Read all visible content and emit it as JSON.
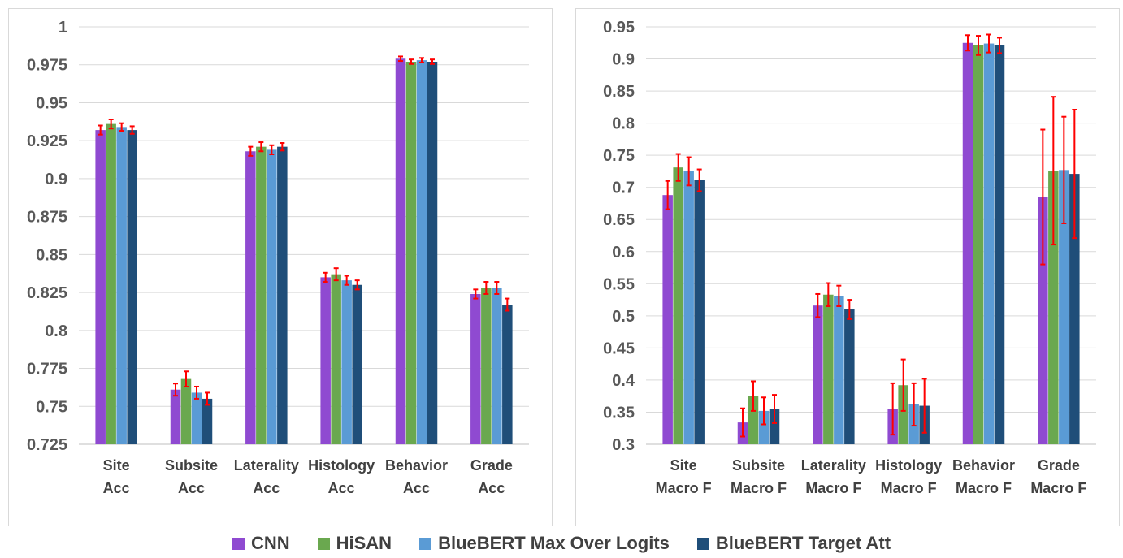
{
  "colors": {
    "series": [
      "#8f4ad1",
      "#6aa84f",
      "#5a9bd5",
      "#1f4e79"
    ],
    "error_bar": "#ff0000",
    "grid": "#d9d9d9"
  },
  "legend": {
    "items": [
      "CNN",
      "HiSAN",
      "BlueBERT Max Over Logits",
      "BlueBERT Target Att"
    ],
    "position": "bottom"
  },
  "chart_data": [
    {
      "type": "bar",
      "grid": true,
      "ylim": [
        0.725,
        1
      ],
      "yticks": [
        "0.725",
        "0.75",
        "0.775",
        "0.8",
        "0.825",
        "0.85",
        "0.875",
        "0.9",
        "0.925",
        "0.95",
        "0.975",
        "1"
      ],
      "categories": [
        [
          "Site",
          "Acc"
        ],
        [
          "Subsite",
          "Acc"
        ],
        [
          "Laterality",
          "Acc"
        ],
        [
          "Histology",
          "Acc"
        ],
        [
          "Behavior",
          "Acc"
        ],
        [
          "Grade",
          "Acc"
        ]
      ],
      "series": [
        {
          "name": "CNN",
          "values": [
            0.932,
            0.761,
            0.918,
            0.835,
            0.979,
            0.824
          ],
          "errors": [
            0.003,
            0.004,
            0.003,
            0.003,
            0.0015,
            0.003
          ]
        },
        {
          "name": "HiSAN",
          "values": [
            0.936,
            0.768,
            0.921,
            0.837,
            0.977,
            0.828
          ],
          "errors": [
            0.003,
            0.005,
            0.003,
            0.004,
            0.0015,
            0.004
          ]
        },
        {
          "name": "BlueBERT Max Over Logits",
          "values": [
            0.934,
            0.759,
            0.919,
            0.833,
            0.978,
            0.828
          ],
          "errors": [
            0.0025,
            0.004,
            0.003,
            0.003,
            0.0015,
            0.004
          ]
        },
        {
          "name": "BlueBERT Target Att",
          "values": [
            0.932,
            0.755,
            0.921,
            0.83,
            0.977,
            0.817
          ],
          "errors": [
            0.0025,
            0.004,
            0.0025,
            0.003,
            0.0015,
            0.004
          ]
        }
      ]
    },
    {
      "type": "bar",
      "grid": true,
      "ylim": [
        0.3,
        0.95
      ],
      "yticks": [
        "0.3",
        "0.35",
        "0.4",
        "0.45",
        "0.5",
        "0.55",
        "0.6",
        "0.65",
        "0.7",
        "0.75",
        "0.8",
        "0.85",
        "0.9",
        "0.95"
      ],
      "categories": [
        [
          "Site",
          "Macro F"
        ],
        [
          "Subsite",
          "Macro F"
        ],
        [
          "Laterality",
          "Macro F"
        ],
        [
          "Histology",
          "Macro F"
        ],
        [
          "Behavior",
          "Macro F"
        ],
        [
          "Grade",
          "Macro F"
        ]
      ],
      "series": [
        {
          "name": "CNN",
          "values": [
            0.688,
            0.334,
            0.516,
            0.355,
            0.925,
            0.685
          ],
          "errors": [
            0.022,
            0.022,
            0.018,
            0.04,
            0.012,
            0.105
          ]
        },
        {
          "name": "HiSAN",
          "values": [
            0.731,
            0.375,
            0.533,
            0.392,
            0.921,
            0.726
          ],
          "errors": [
            0.021,
            0.023,
            0.018,
            0.04,
            0.015,
            0.115
          ]
        },
        {
          "name": "BlueBERT Max Over Logits",
          "values": [
            0.725,
            0.352,
            0.531,
            0.362,
            0.924,
            0.727
          ],
          "errors": [
            0.022,
            0.021,
            0.016,
            0.033,
            0.014,
            0.083
          ]
        },
        {
          "name": "BlueBERT Target Att",
          "values": [
            0.711,
            0.355,
            0.51,
            0.36,
            0.921,
            0.721
          ],
          "errors": [
            0.017,
            0.022,
            0.015,
            0.042,
            0.012,
            0.1
          ]
        }
      ]
    }
  ]
}
